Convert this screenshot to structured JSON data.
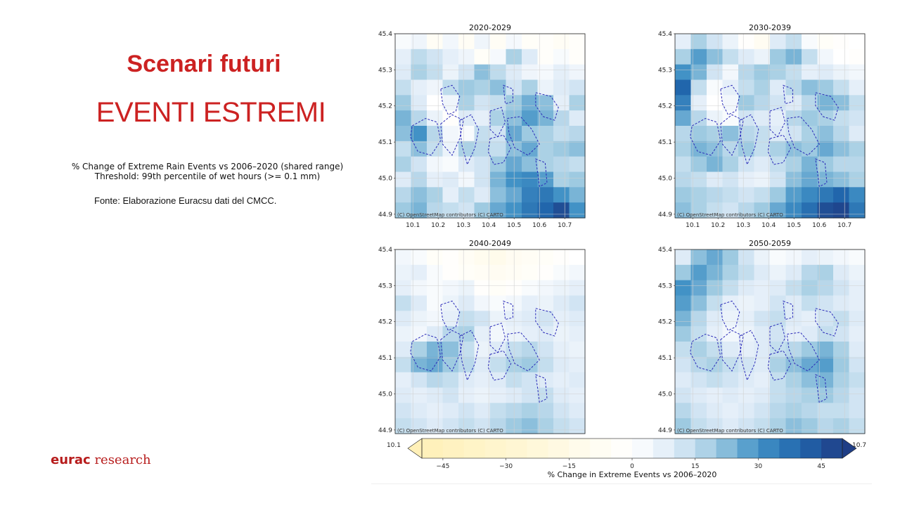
{
  "slide": {
    "title": "Scenari futuri",
    "subtitle": "EVENTI ESTREMI",
    "caption_line1": "% Change of Extreme Rain Events vs 2006–2020 (shared range)",
    "caption_line2": "Threshold: 99th percentile of wet hours (>= 0.1 mm)",
    "source": "Fonte: Elaborazione Euracsu dati del CMCC.",
    "brand_bold": "eurac",
    "brand_rest": " research"
  },
  "colors": {
    "title": "#cc2222",
    "brand": "#b71c1c",
    "district_outline": "#2b2bb8",
    "cbar_neg_end": "#fff0b8",
    "cbar_pos_end": "#1f3e86"
  },
  "chart_data": [
    {
      "type": "heatmap",
      "title": "2020-2029",
      "xlim": [
        10.03,
        10.78
      ],
      "ylim": [
        44.89,
        45.4
      ],
      "xticks": [
        "10.1",
        "10.2",
        "10.3",
        "10.4",
        "10.5",
        "10.6",
        "10.7"
      ],
      "yticks": [
        "44.9",
        "45.0",
        "45.1",
        "45.2",
        "45.3",
        "45.4"
      ],
      "attribution": "(C) OpenStreetMap contributors (C) CARTO",
      "grid": [
        [
          2,
          5,
          -6,
          4,
          -6,
          5,
          -6,
          3,
          -4,
          -3,
          -6,
          -3
        ],
        [
          8,
          15,
          12,
          8,
          5,
          -4,
          3,
          18,
          10,
          -3,
          2,
          -3
        ],
        [
          10,
          18,
          14,
          6,
          12,
          22,
          15,
          10,
          5,
          3,
          8,
          5
        ],
        [
          14,
          8,
          5,
          15,
          20,
          18,
          22,
          12,
          18,
          6,
          10,
          12
        ],
        [
          20,
          10,
          0,
          5,
          18,
          12,
          14,
          20,
          25,
          22,
          8,
          18
        ],
        [
          24,
          16,
          6,
          -2,
          10,
          8,
          18,
          22,
          28,
          24,
          16,
          10
        ],
        [
          22,
          30,
          16,
          4,
          2,
          14,
          12,
          26,
          20,
          18,
          14,
          16
        ],
        [
          14,
          22,
          14,
          6,
          18,
          16,
          14,
          22,
          26,
          18,
          20,
          22
        ],
        [
          18,
          12,
          4,
          2,
          10,
          12,
          20,
          26,
          22,
          18,
          16,
          14
        ],
        [
          10,
          16,
          8,
          10,
          4,
          12,
          24,
          30,
          32,
          28,
          18,
          20
        ],
        [
          16,
          22,
          18,
          8,
          14,
          10,
          22,
          26,
          34,
          36,
          30,
          24
        ],
        [
          20,
          24,
          16,
          14,
          12,
          20,
          26,
          30,
          36,
          40,
          46,
          30
        ]
      ]
    },
    {
      "type": "heatmap",
      "title": "2030-2039",
      "xlim": [
        10.03,
        10.78
      ],
      "ylim": [
        44.89,
        45.4
      ],
      "xticks": [
        "10.1",
        "10.2",
        "10.3",
        "10.4",
        "10.5",
        "10.6",
        "10.7"
      ],
      "yticks": [
        "44.9",
        "45.0",
        "45.1",
        "45.2",
        "45.3",
        "45.4"
      ],
      "attribution": "(C) OpenStreetMap contributors (C) CARTO",
      "grid": [
        [
          8,
          18,
          12,
          6,
          -2,
          -8,
          10,
          14,
          2,
          -4,
          -2,
          0
        ],
        [
          18,
          28,
          22,
          14,
          10,
          6,
          20,
          24,
          14,
          4,
          0,
          -2
        ],
        [
          30,
          24,
          12,
          4,
          16,
          20,
          18,
          14,
          8,
          10,
          6,
          4
        ],
        [
          40,
          14,
          2,
          8,
          14,
          18,
          10,
          16,
          22,
          20,
          14,
          8
        ],
        [
          34,
          8,
          0,
          4,
          20,
          16,
          12,
          10,
          16,
          24,
          22,
          14
        ],
        [
          26,
          16,
          6,
          2,
          12,
          10,
          8,
          16,
          20,
          18,
          14,
          12
        ],
        [
          16,
          20,
          18,
          22,
          16,
          14,
          10,
          12,
          18,
          22,
          16,
          10
        ],
        [
          18,
          24,
          22,
          16,
          20,
          14,
          18,
          22,
          20,
          26,
          22,
          18
        ],
        [
          14,
          20,
          24,
          18,
          12,
          10,
          14,
          18,
          24,
          20,
          16,
          16
        ],
        [
          16,
          14,
          10,
          12,
          8,
          6,
          12,
          22,
          26,
          24,
          22,
          18
        ],
        [
          20,
          18,
          16,
          14,
          12,
          14,
          20,
          28,
          32,
          36,
          40,
          32
        ],
        [
          22,
          18,
          14,
          12,
          16,
          20,
          26,
          32,
          38,
          46,
          48,
          36
        ]
      ]
    },
    {
      "type": "heatmap",
      "title": "2040-2049",
      "xlim": [
        10.03,
        10.78
      ],
      "ylim": [
        44.89,
        45.4
      ],
      "xticks": [
        "10.1",
        "10.2",
        "10.3",
        "10.4",
        "10.5",
        "10.6",
        "10.7"
      ],
      "yticks": [
        "44.9",
        "45.0",
        "45.1",
        "45.2",
        "45.3",
        "45.4"
      ],
      "attribution": "(C) OpenStreetMap contributors (C) CARTO",
      "grid": [
        [
          4,
          2,
          -4,
          -2,
          -6,
          -10,
          -12,
          -8,
          -6,
          -4,
          -2,
          0
        ],
        [
          6,
          8,
          2,
          -2,
          -4,
          -6,
          -8,
          -6,
          -4,
          -2,
          2,
          4
        ],
        [
          8,
          4,
          2,
          4,
          6,
          -2,
          -4,
          -2,
          2,
          4,
          6,
          8
        ],
        [
          14,
          10,
          2,
          6,
          10,
          4,
          2,
          4,
          8,
          6,
          10,
          12
        ],
        [
          10,
          6,
          4,
          8,
          14,
          12,
          6,
          8,
          10,
          12,
          8,
          10
        ],
        [
          6,
          4,
          10,
          16,
          18,
          8,
          4,
          6,
          8,
          10,
          6,
          8
        ],
        [
          10,
          18,
          24,
          22,
          14,
          6,
          10,
          14,
          16,
          12,
          8,
          6
        ],
        [
          14,
          24,
          26,
          20,
          16,
          10,
          14,
          18,
          20,
          14,
          10,
          8
        ],
        [
          8,
          12,
          16,
          14,
          10,
          8,
          10,
          14,
          12,
          10,
          8,
          10
        ],
        [
          10,
          8,
          10,
          12,
          8,
          6,
          8,
          10,
          12,
          14,
          10,
          8
        ],
        [
          12,
          10,
          8,
          10,
          12,
          10,
          14,
          16,
          18,
          16,
          12,
          10
        ],
        [
          14,
          12,
          10,
          12,
          14,
          12,
          16,
          20,
          22,
          18,
          14,
          12
        ]
      ]
    },
    {
      "type": "heatmap",
      "title": "2050-2059",
      "xlim": [
        10.03,
        10.78
      ],
      "ylim": [
        44.89,
        45.4
      ],
      "xticks": [
        "10.1",
        "10.2",
        "10.3",
        "10.4",
        "10.5",
        "10.6",
        "10.7"
      ],
      "yticks": [
        "44.9",
        "45.0",
        "45.1",
        "45.2",
        "45.3",
        "45.4"
      ],
      "attribution": "(C) OpenStreetMap contributors (C) CARTO",
      "grid": [
        [
          10,
          22,
          26,
          20,
          12,
          6,
          2,
          4,
          8,
          6,
          4,
          2
        ],
        [
          20,
          28,
          24,
          18,
          14,
          10,
          6,
          10,
          16,
          18,
          10,
          6
        ],
        [
          30,
          26,
          20,
          14,
          10,
          8,
          10,
          14,
          18,
          16,
          12,
          8
        ],
        [
          28,
          22,
          14,
          8,
          6,
          8,
          12,
          10,
          14,
          12,
          10,
          8
        ],
        [
          24,
          16,
          10,
          6,
          8,
          12,
          14,
          10,
          8,
          12,
          14,
          10
        ],
        [
          20,
          14,
          8,
          4,
          6,
          10,
          12,
          8,
          10,
          14,
          12,
          8
        ],
        [
          14,
          18,
          14,
          10,
          8,
          10,
          14,
          16,
          20,
          24,
          18,
          10
        ],
        [
          12,
          16,
          18,
          14,
          12,
          10,
          18,
          22,
          26,
          28,
          20,
          12
        ],
        [
          10,
          12,
          14,
          12,
          10,
          8,
          14,
          18,
          22,
          24,
          18,
          14
        ],
        [
          12,
          10,
          8,
          10,
          8,
          10,
          14,
          16,
          18,
          20,
          16,
          12
        ],
        [
          16,
          12,
          10,
          8,
          10,
          12,
          16,
          18,
          16,
          14,
          14,
          12
        ],
        [
          20,
          14,
          12,
          10,
          12,
          14,
          18,
          22,
          20,
          16,
          18,
          14
        ]
      ]
    }
  ],
  "colorbar": {
    "label": "% Change in Extreme Events vs 2006–2020",
    "vmin": -50,
    "vmax": 50,
    "ticks": [
      "−45",
      "−30",
      "−15",
      "0",
      "15",
      "30",
      "45"
    ],
    "tick_values": [
      -45,
      -30,
      -15,
      0,
      15,
      30,
      45
    ],
    "left_label": "10.1",
    "right_label": "10.7"
  }
}
